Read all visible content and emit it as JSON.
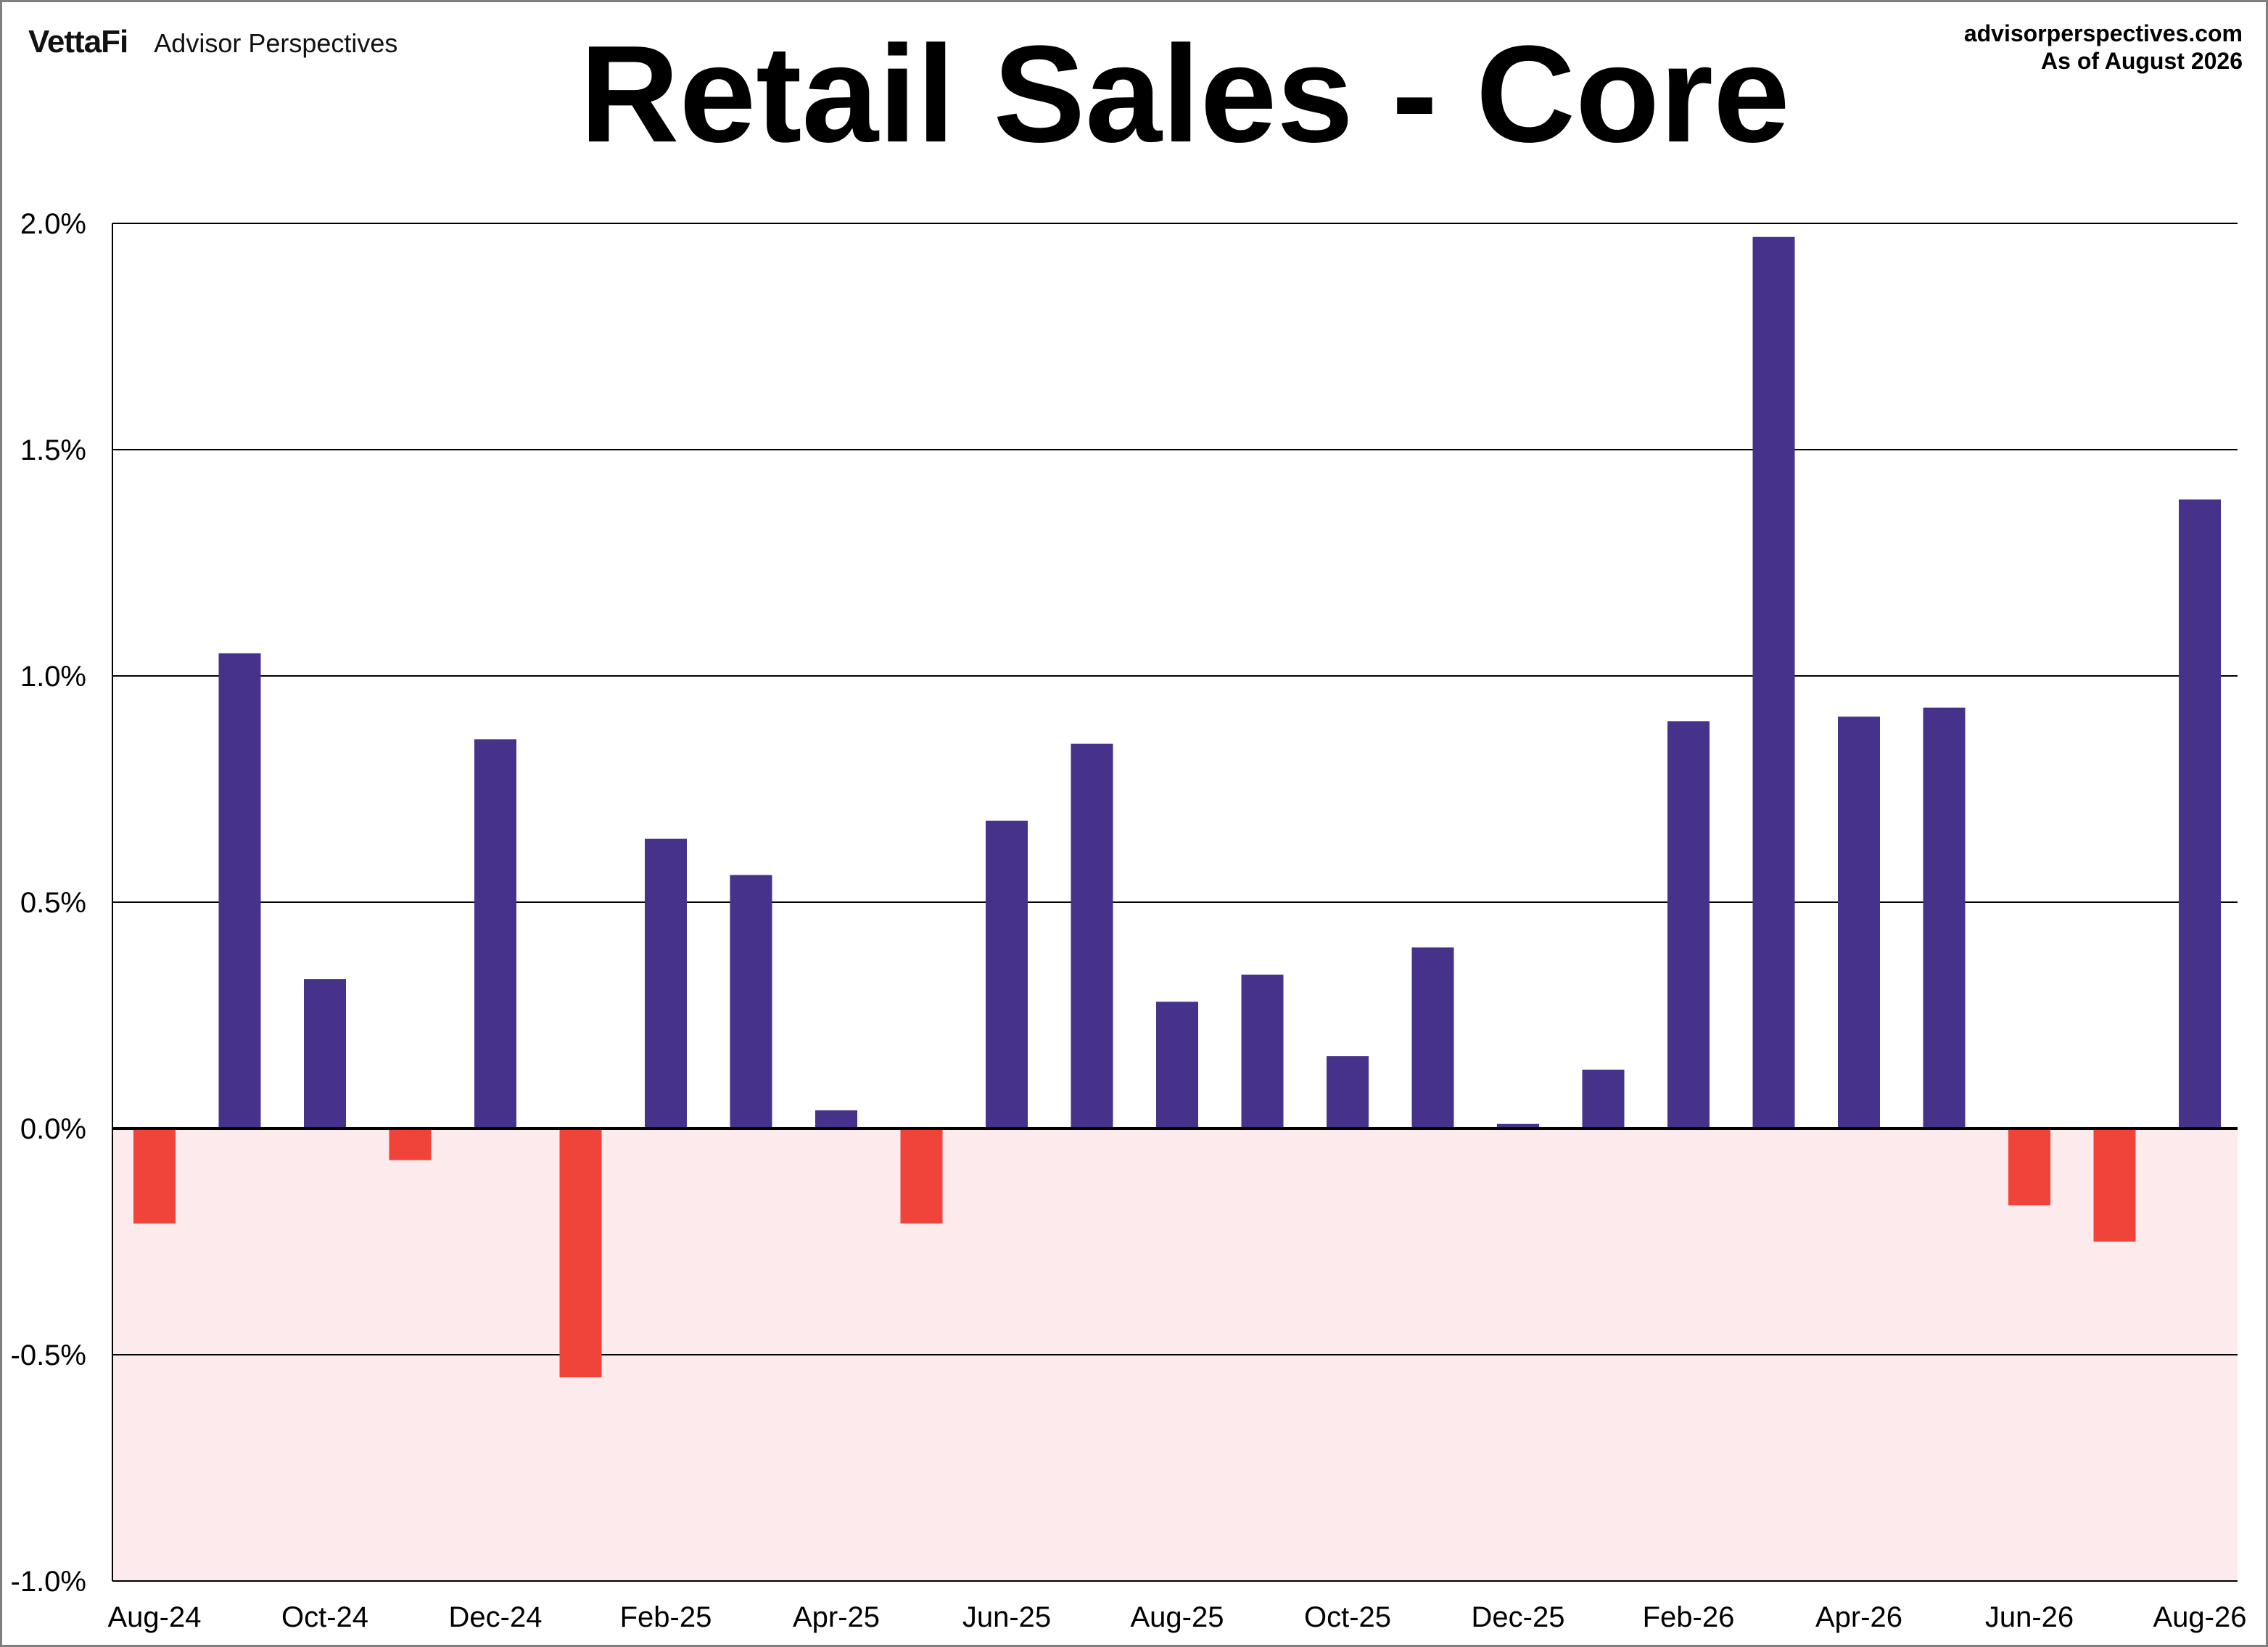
{
  "header": {
    "brand": "VettaFi",
    "publication": "Advisor Perspectives",
    "title": "Retail Sales - Core",
    "source": "advisorperspectives.com",
    "as_of": "As of August 2026"
  },
  "colors": {
    "positive": "#46328a",
    "negative": "#f0433a",
    "negative_zone": "#fdeaec",
    "grid": "#000000"
  },
  "chart_data": {
    "type": "bar",
    "title": "Retail Sales - Core",
    "xlabel": "",
    "ylabel": "",
    "ylim": [
      -1.0,
      2.0
    ],
    "y_ticks": [
      2.0,
      1.5,
      1.0,
      0.5,
      0.0,
      -0.5,
      -1.0
    ],
    "y_tick_labels": [
      "2.0%",
      "1.5%",
      "1.0%",
      "0.5%",
      "0.0%",
      "-0.5%",
      "-1.0%"
    ],
    "grid": true,
    "negative_region_shaded": true,
    "categories": [
      "Aug-24",
      "Sep-24",
      "Oct-24",
      "Nov-24",
      "Dec-24",
      "Jan-25",
      "Feb-25",
      "Mar-25",
      "Apr-25",
      "May-25",
      "Jun-25",
      "Jul-25",
      "Aug-25",
      "Sep-25",
      "Oct-25",
      "Nov-25",
      "Dec-25",
      "Jan-26",
      "Feb-26",
      "Mar-26",
      "Apr-26",
      "May-26",
      "Jun-26",
      "Jul-26",
      "Aug-26"
    ],
    "values": [
      -0.21,
      1.05,
      0.33,
      -0.07,
      0.86,
      -0.55,
      0.64,
      0.56,
      0.04,
      -0.21,
      0.68,
      0.85,
      0.28,
      0.34,
      0.16,
      0.4,
      0.01,
      0.13,
      0.9,
      1.97,
      0.91,
      0.93,
      -0.17,
      -0.25,
      1.39
    ],
    "x_tick_labels": [
      "Aug-24",
      "Oct-24",
      "Dec-24",
      "Feb-25",
      "Apr-25",
      "Jun-25",
      "Aug-25",
      "Oct-25",
      "Dec-25",
      "Feb-26",
      "Apr-26",
      "Jun-26",
      "Aug-26"
    ]
  }
}
